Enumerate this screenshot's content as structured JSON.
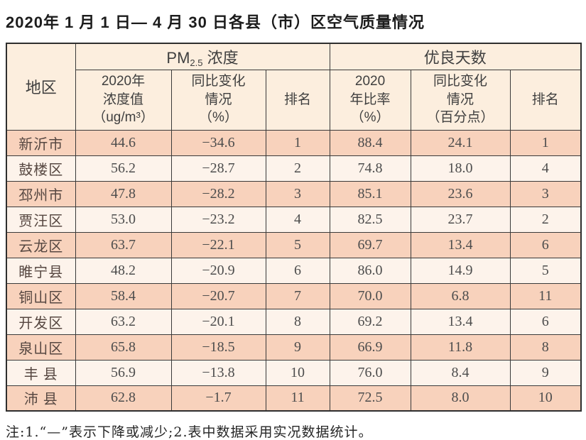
{
  "title": "2020年 1 月 1 日— 4 月 30 日各县（市）区空气质量情况",
  "table": {
    "region_header": "地区",
    "pm_group": {
      "prefix": "PM",
      "sub": "2.5",
      "suffix": " 浓度"
    },
    "days_group": "优良天数",
    "sub_headers": {
      "pm_value": "2020年\n浓度值\n（ug/m³）",
      "pm_change": "同比变化\n情况\n（%）",
      "pm_rank": "排名",
      "ratio": "2020\n年比率\n（%）",
      "ratio_change": "同比变化\n情况\n（百分点）",
      "ratio_rank": "排名"
    },
    "rows": [
      {
        "region": "新沂市",
        "pm_value": "44.6",
        "pm_change": "−34.6",
        "pm_rank": "1",
        "ratio": "88.4",
        "ratio_change": "24.1",
        "ratio_rank": "1"
      },
      {
        "region": "鼓楼区",
        "pm_value": "56.2",
        "pm_change": "−28.7",
        "pm_rank": "2",
        "ratio": "74.8",
        "ratio_change": "18.0",
        "ratio_rank": "4"
      },
      {
        "region": "邳州市",
        "pm_value": "47.8",
        "pm_change": "−28.2",
        "pm_rank": "3",
        "ratio": "85.1",
        "ratio_change": "23.6",
        "ratio_rank": "3"
      },
      {
        "region": "贾汪区",
        "pm_value": "53.0",
        "pm_change": "−23.2",
        "pm_rank": "4",
        "ratio": "82.5",
        "ratio_change": "23.7",
        "ratio_rank": "2"
      },
      {
        "region": "云龙区",
        "pm_value": "63.7",
        "pm_change": "−22.1",
        "pm_rank": "5",
        "ratio": "69.7",
        "ratio_change": "13.4",
        "ratio_rank": "6"
      },
      {
        "region": "睢宁县",
        "pm_value": "48.2",
        "pm_change": "−20.9",
        "pm_rank": "6",
        "ratio": "86.0",
        "ratio_change": "14.9",
        "ratio_rank": "5"
      },
      {
        "region": "铜山区",
        "pm_value": "58.4",
        "pm_change": "−20.7",
        "pm_rank": "7",
        "ratio": "70.0",
        "ratio_change": "6.8",
        "ratio_rank": "11"
      },
      {
        "region": "开发区",
        "pm_value": "63.2",
        "pm_change": "−20.1",
        "pm_rank": "8",
        "ratio": "69.2",
        "ratio_change": "13.4",
        "ratio_rank": "6"
      },
      {
        "region": "泉山区",
        "pm_value": "65.8",
        "pm_change": "−18.5",
        "pm_rank": "9",
        "ratio": "66.9",
        "ratio_change": "11.8",
        "ratio_rank": "8"
      },
      {
        "region": "丰 县",
        "pm_value": "56.9",
        "pm_change": "−13.8",
        "pm_rank": "10",
        "ratio": "76.0",
        "ratio_change": "8.4",
        "ratio_rank": "9"
      },
      {
        "region": "沛 县",
        "pm_value": "62.8",
        "pm_change": "−1.7",
        "pm_rank": "11",
        "ratio": "72.5",
        "ratio_change": "8.0",
        "ratio_rank": "10"
      }
    ]
  },
  "note": "注:1.“—”表示下降或减少;2.表中数据采用实况数据统计。",
  "colors": {
    "row_odd": "#f8d2bc",
    "row_even": "#fdf3eb",
    "header_bg": "#fceede",
    "border": "#3a3a3a"
  }
}
